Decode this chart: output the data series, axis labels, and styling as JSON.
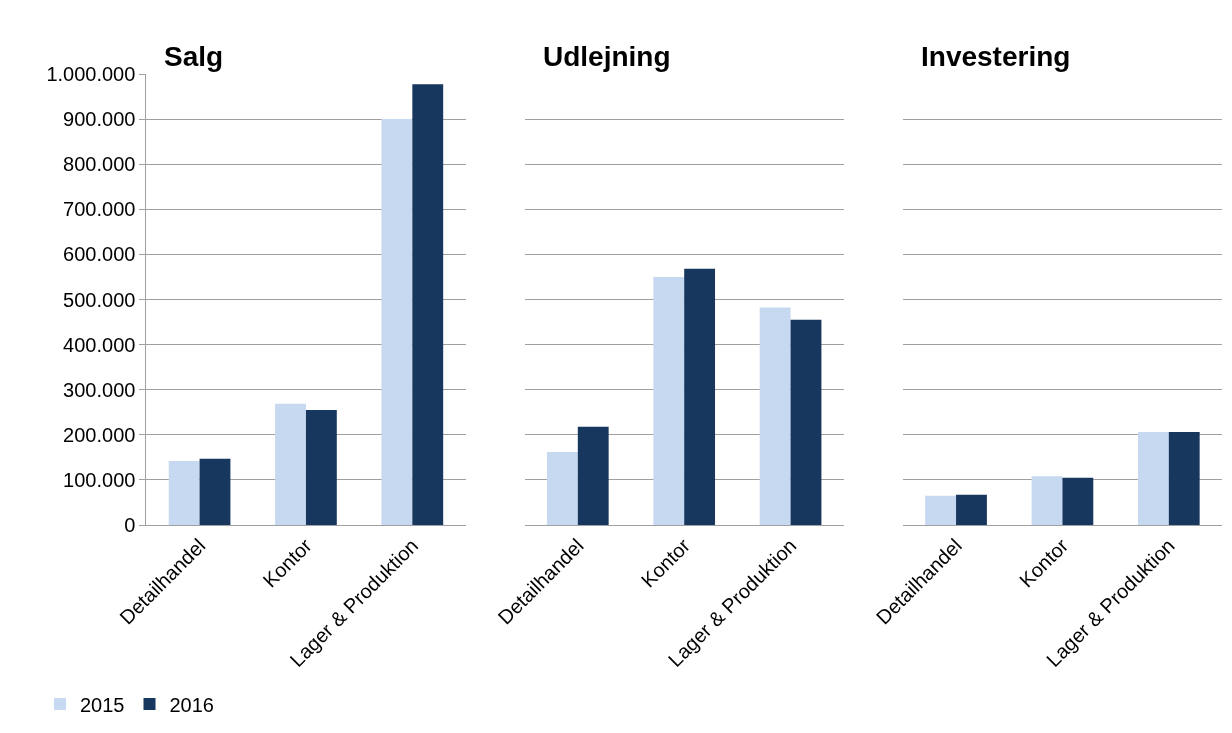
{
  "chart_data": [
    {
      "type": "bar",
      "title": "Salg",
      "categories": [
        "Detailhandel",
        "Kontor",
        "Lager & Produktion"
      ],
      "series": [
        {
          "name": "2015",
          "color": "#c6d9f0",
          "values": [
            142000,
            269000,
            900000
          ]
        },
        {
          "name": "2016",
          "color": "#17375e",
          "values": [
            147000,
            255000,
            977000
          ]
        }
      ],
      "ylim": [
        0,
        1000000
      ],
      "yticks": [
        {
          "value": 0,
          "label": "0"
        },
        {
          "value": 100000,
          "label": "100.000"
        },
        {
          "value": 200000,
          "label": "200.000"
        },
        {
          "value": 300000,
          "label": "300.000"
        },
        {
          "value": 400000,
          "label": "400.000"
        },
        {
          "value": 500000,
          "label": "500.000"
        },
        {
          "value": 600000,
          "label": "600.000"
        },
        {
          "value": 700000,
          "label": "700.000"
        },
        {
          "value": 800000,
          "label": "800.000"
        },
        {
          "value": 900000,
          "label": "900.000"
        },
        {
          "value": 1000000,
          "label": "1.000.000"
        }
      ],
      "grid": "y",
      "legend": "bottom left"
    },
    {
      "type": "bar",
      "title": "Udlejning",
      "categories": [
        "Detailhandel",
        "Kontor",
        "Lager & Produktion"
      ],
      "series": [
        {
          "name": "2015",
          "color": "#c6d9f0",
          "values": [
            162000,
            550000,
            482000
          ]
        },
        {
          "name": "2016",
          "color": "#17375e",
          "values": [
            218000,
            568000,
            455000
          ]
        }
      ],
      "ylim": [
        0,
        1000000
      ],
      "yticks": [
        0,
        100000,
        200000,
        300000,
        400000,
        500000,
        600000,
        700000,
        800000,
        900000,
        1000000
      ],
      "grid": "y",
      "tick_labels": "x"
    },
    {
      "type": "bar",
      "title": "Investering",
      "categories": [
        "Detailhandel",
        "Kontor",
        "Lager & Produktion"
      ],
      "series": [
        {
          "name": "2015",
          "color": "#c6d9f0",
          "values": [
            65000,
            108000,
            206000
          ]
        },
        {
          "name": "2016",
          "color": "#17375e",
          "values": [
            67000,
            105000,
            206000
          ]
        }
      ],
      "ylim": [
        0,
        1000000
      ],
      "yticks": [
        0,
        100000,
        200000,
        300000,
        400000,
        500000,
        600000,
        700000,
        800000,
        900000,
        1000000
      ],
      "grid": "y",
      "tick_labels": "x"
    }
  ]
}
